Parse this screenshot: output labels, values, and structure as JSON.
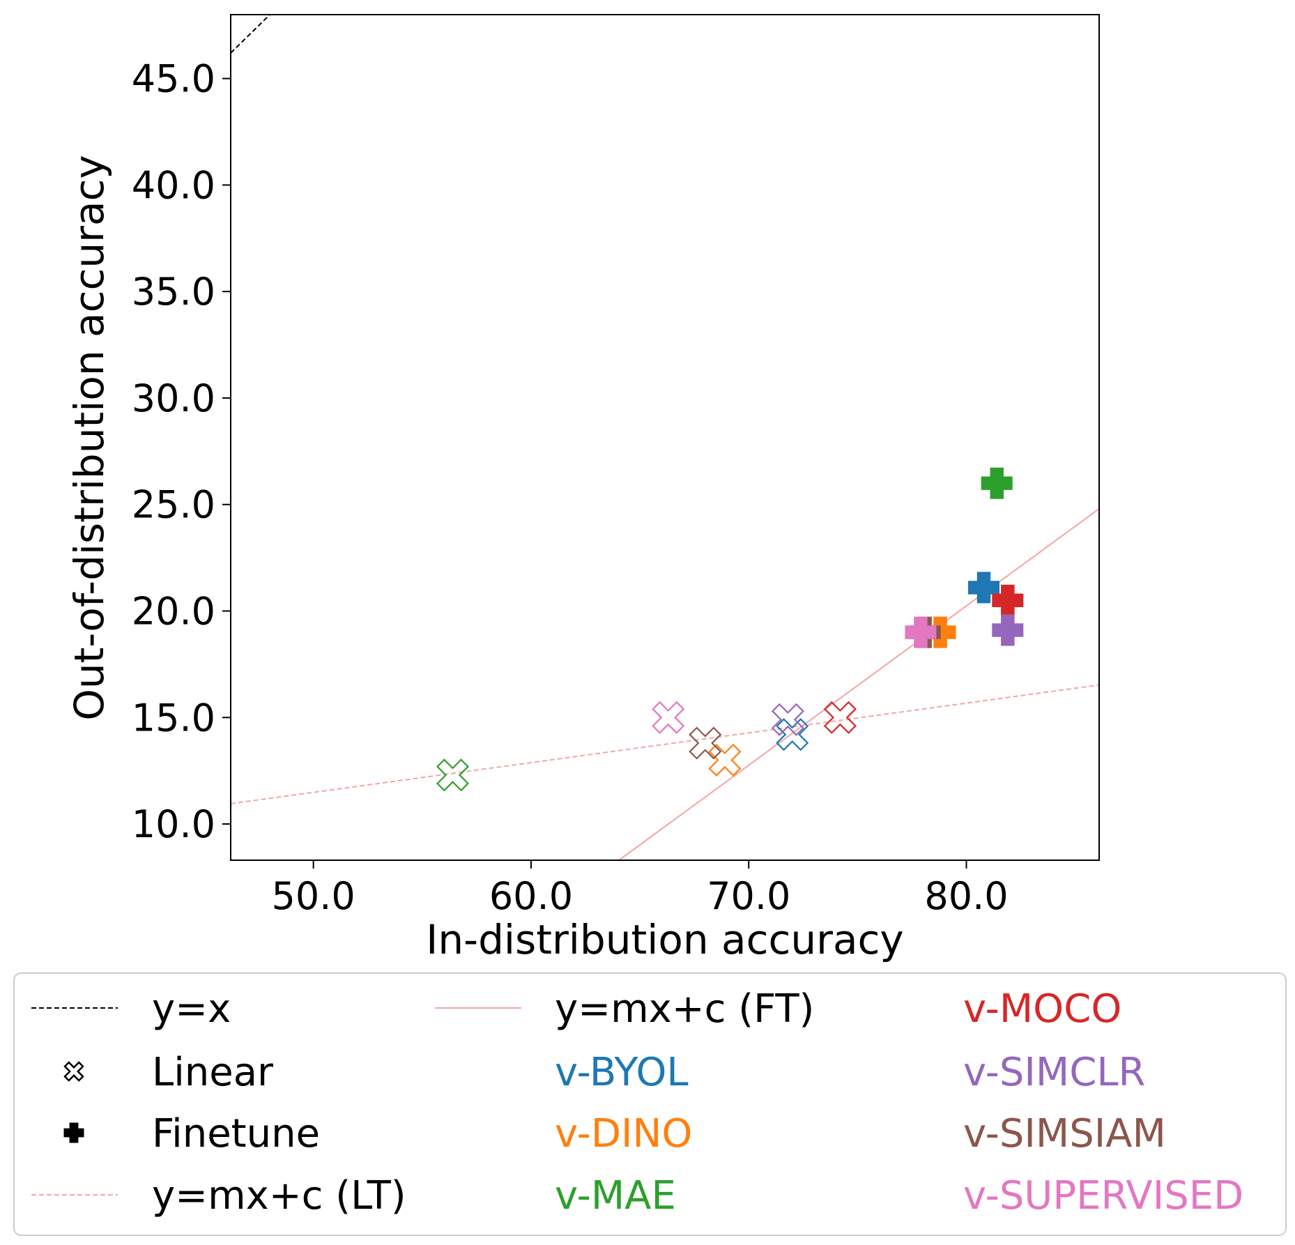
{
  "chart_data": {
    "type": "scatter",
    "title": "",
    "xlabel": "In-distribution accuracy",
    "ylabel": "Out-of-distribution accuracy",
    "xlim": [
      46.2,
      86.1
    ],
    "ylim": [
      8.3,
      48.0
    ],
    "xticks": [
      50.0,
      60.0,
      70.0,
      80.0
    ],
    "yticks": [
      10.0,
      15.0,
      20.0,
      25.0,
      30.0,
      35.0,
      40.0,
      45.0
    ],
    "xtick_labels": [
      "50.0",
      "60.0",
      "70.0",
      "80.0"
    ],
    "ytick_labels": [
      "10.0",
      "15.0",
      "20.0",
      "25.0",
      "30.0",
      "35.0",
      "40.0",
      "45.0"
    ],
    "grid": false,
    "legend_placement": "below",
    "lines": [
      {
        "name": "y=x",
        "style": "dashed",
        "color": "#000000",
        "slope": 1.0,
        "intercept": 0.0
      },
      {
        "name": "y=mx+c (FT)",
        "style": "solid",
        "color": "#f4a5a5",
        "slope": 0.748,
        "intercept": -39.6
      },
      {
        "name": "y=mx+c (LT)",
        "style": "dashed",
        "color": "#f4a5a5",
        "slope": 0.1397,
        "intercept": 4.5
      }
    ],
    "marker_types": [
      {
        "name": "Linear",
        "marker": "x-hollow"
      },
      {
        "name": "Finetune",
        "marker": "plus-filled"
      }
    ],
    "series": [
      {
        "name": "v-BYOL",
        "color": "#1f77b4",
        "linear": [
          72.0,
          14.2
        ],
        "finetune": [
          80.8,
          21.1
        ]
      },
      {
        "name": "v-DINO",
        "color": "#ff7f0e",
        "linear": [
          68.9,
          13.0
        ],
        "finetune": [
          78.8,
          19.0
        ]
      },
      {
        "name": "v-MAE",
        "color": "#2ca02c",
        "linear": [
          56.4,
          12.3
        ],
        "finetune": [
          81.4,
          26.0
        ]
      },
      {
        "name": "v-MOCO",
        "color": "#d62728",
        "linear": [
          74.2,
          15.0
        ],
        "finetune": [
          81.9,
          20.5
        ]
      },
      {
        "name": "v-SIMCLR",
        "color": "#9467bd",
        "linear": [
          71.8,
          14.9
        ],
        "finetune": [
          81.9,
          19.1
        ]
      },
      {
        "name": "v-SIMSIAM",
        "color": "#8c564b",
        "linear": [
          68.0,
          13.8
        ],
        "finetune": [
          78.1,
          19.0
        ]
      },
      {
        "name": "v-SUPERVISED",
        "color": "#e377c2",
        "linear": [
          66.3,
          15.0
        ],
        "finetune": [
          77.9,
          19.0
        ]
      }
    ],
    "legend": {
      "columns": [
        [
          "y=x",
          "Linear",
          "Finetune",
          "y=mx+c (LT)"
        ],
        [
          "y=mx+c (FT)",
          "v-BYOL",
          "v-DINO",
          "v-MAE"
        ],
        [
          "v-MOCO",
          "v-SIMCLR",
          "v-SIMSIAM",
          "v-SUPERVISED"
        ]
      ]
    }
  }
}
